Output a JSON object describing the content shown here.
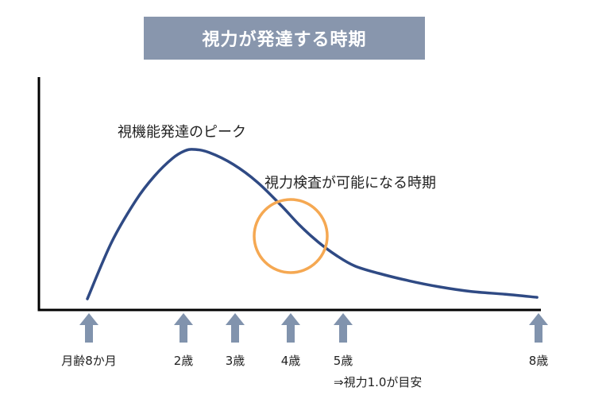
{
  "chart_data": {
    "type": "line",
    "title": "視力が発達する時期",
    "xlabel": "",
    "ylabel": "",
    "series": [
      {
        "name": "",
        "color": "#2f4a84",
        "points": [
          {
            "x": 0.0,
            "y": 0.0
          },
          {
            "x": 0.4,
            "y": 0.38
          },
          {
            "x": 0.8,
            "y": 0.66
          },
          {
            "x": 1.1,
            "y": 0.82
          },
          {
            "x": 1.4,
            "y": 0.94
          },
          {
            "x": 1.6,
            "y": 0.99
          },
          {
            "x": 1.75,
            "y": 1.0
          },
          {
            "x": 2.0,
            "y": 0.98
          },
          {
            "x": 2.4,
            "y": 0.9
          },
          {
            "x": 2.8,
            "y": 0.78
          },
          {
            "x": 3.2,
            "y": 0.62
          },
          {
            "x": 3.5,
            "y": 0.49
          },
          {
            "x": 3.8,
            "y": 0.38
          },
          {
            "x": 4.1,
            "y": 0.29
          },
          {
            "x": 4.4,
            "y": 0.22
          },
          {
            "x": 4.8,
            "y": 0.17
          },
          {
            "x": 5.3,
            "y": 0.12
          },
          {
            "x": 5.8,
            "y": 0.08
          },
          {
            "x": 6.3,
            "y": 0.05
          },
          {
            "x": 6.9,
            "y": 0.03
          },
          {
            "x": 7.4,
            "y": 0.01
          }
        ]
      }
    ],
    "markers": [
      {
        "label": "月齢8か月",
        "position": 0
      },
      {
        "label": "2歳",
        "position": 1
      },
      {
        "label": "3歳",
        "position": 2
      },
      {
        "label": "4歳",
        "position": 3
      },
      {
        "label": "5歳",
        "position": 4
      },
      {
        "label": "8歳",
        "position": 5
      }
    ],
    "note": "⇒視力1.0が目安",
    "annotations": {
      "peak": "視機能発達のピーク",
      "testable": "視力検査が可能になる時期"
    },
    "colors": {
      "curve": "#2f4a84",
      "circle": "#f5a852",
      "arrow": "#8193ad",
      "banner": "#8896ad"
    }
  }
}
